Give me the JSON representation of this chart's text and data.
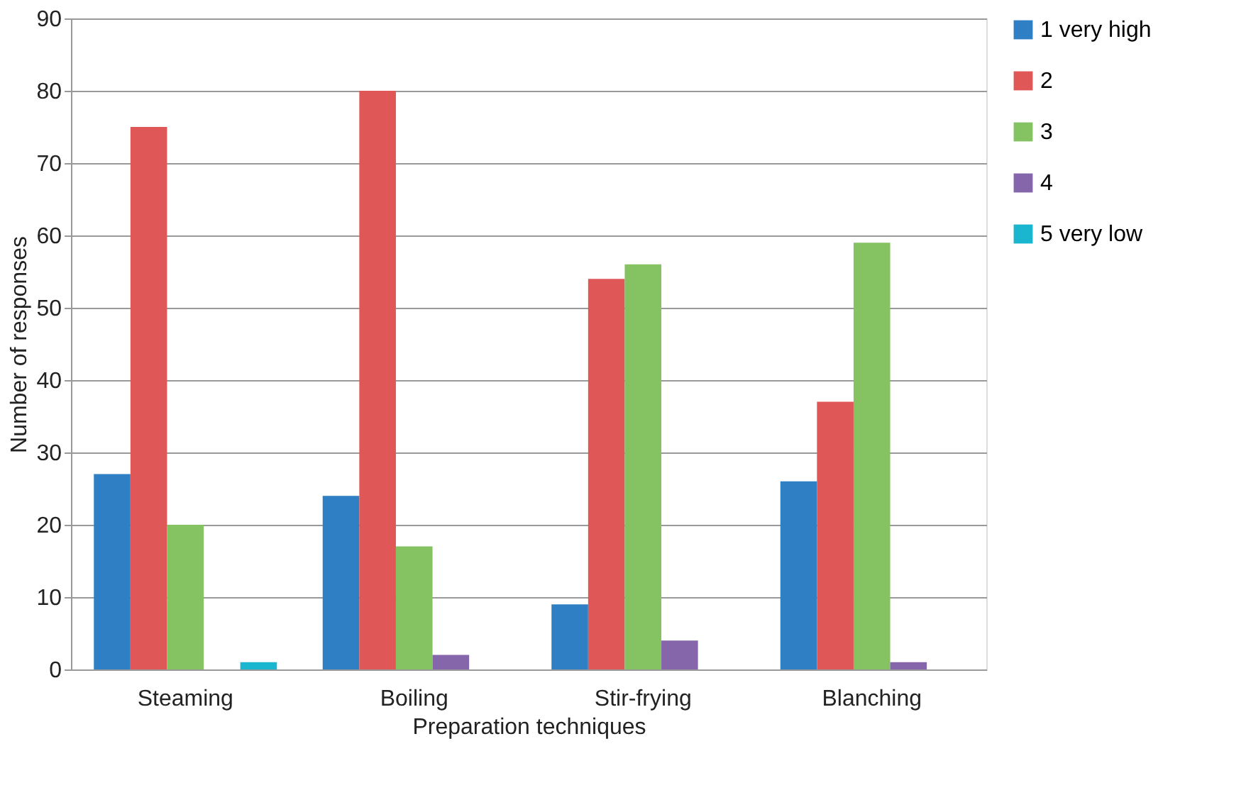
{
  "chart_data": {
    "type": "bar",
    "xlabel": "Preparation techniques",
    "ylabel": "Number of responses",
    "categories": [
      "Steaming",
      "Boiling",
      "Stir-frying",
      "Blanching"
    ],
    "series": [
      {
        "name": "1 very high",
        "color": "#2e7fc4",
        "values": [
          27,
          24,
          9,
          26
        ]
      },
      {
        "name": "2",
        "color": "#e05757",
        "values": [
          75,
          80,
          54,
          37
        ]
      },
      {
        "name": "3",
        "color": "#84c262",
        "values": [
          20,
          17,
          56,
          59
        ]
      },
      {
        "name": "4",
        "color": "#8566ab",
        "values": [
          0,
          2,
          4,
          1
        ]
      },
      {
        "name": "5 very low",
        "color": "#1ab5cf",
        "values": [
          1,
          0,
          0,
          0
        ]
      }
    ],
    "ylim": [
      0,
      90
    ],
    "yticks": [
      0,
      10,
      20,
      30,
      40,
      50,
      60,
      70,
      80,
      90
    ],
    "grid": "y",
    "legend": "right"
  }
}
